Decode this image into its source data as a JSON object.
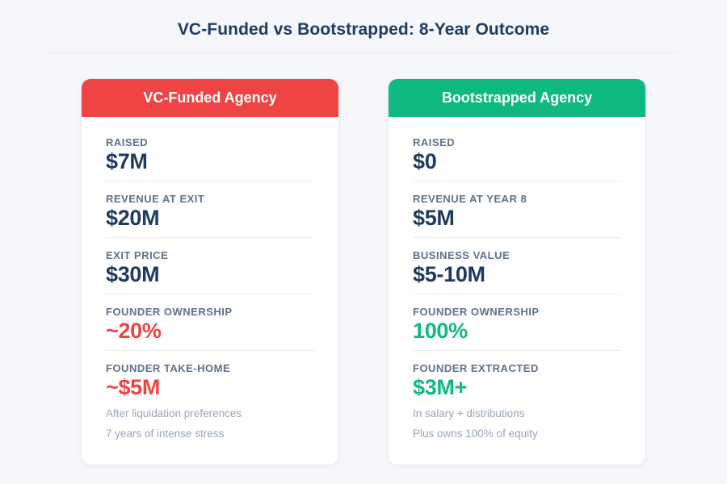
{
  "page": {
    "title": "VC-Funded vs Bootstrapped: 8-Year Outcome"
  },
  "colors": {
    "background": "#f5f7fa",
    "vc_accent": "#ef4444",
    "bootstrapped_accent": "#10b981",
    "value_navy": "#1e3a5f",
    "label_slate": "#5e7189",
    "note_gray": "#97a4ba"
  },
  "cards": [
    {
      "title": "VC-Funded Agency",
      "accent": "#ef4444",
      "rows": [
        {
          "label": "RAISED",
          "value": "$7M"
        },
        {
          "label": "REVENUE AT EXIT",
          "value": "$20M"
        },
        {
          "label": "EXIT PRICE",
          "value": "$30M"
        },
        {
          "label": "FOUNDER OWNERSHIP",
          "value": "~20%"
        },
        {
          "label": "FOUNDER TAKE-HOME",
          "value": "~$5M",
          "notes": [
            "After liquidation preferences",
            "7 years of intense stress"
          ]
        }
      ]
    },
    {
      "title": "Bootstrapped Agency",
      "accent": "#10b981",
      "rows": [
        {
          "label": "RAISED",
          "value": "$0"
        },
        {
          "label": "REVENUE AT YEAR 8",
          "value": "$5M"
        },
        {
          "label": "BUSINESS VALUE",
          "value": "$5-10M"
        },
        {
          "label": "FOUNDER OWNERSHIP",
          "value": "100%"
        },
        {
          "label": "FOUNDER EXTRACTED",
          "value": "$3M+",
          "notes": [
            "In salary + distributions",
            "Plus owns 100% of equity"
          ]
        }
      ]
    }
  ]
}
